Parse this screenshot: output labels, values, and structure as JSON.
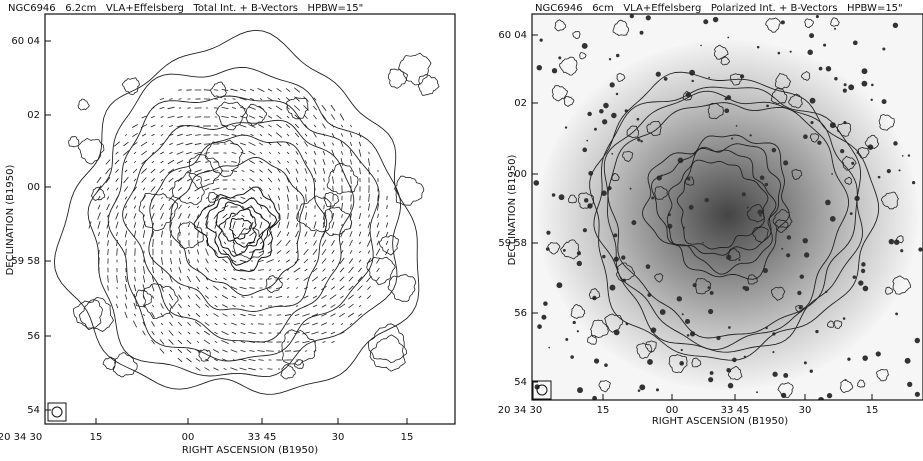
{
  "panels": [
    {
      "title": "NGC6946   6.2cm   VLA+Effelsberg   Total Int. + B-Vectors   HPBW=15\"",
      "x_label": "RIGHT ASCENSION (B1950)",
      "y_label": "DECLINATION (B1950)",
      "x_ticks": [
        "20 34 30",
        "15",
        "00",
        "33 45",
        "30",
        "15"
      ],
      "y_ticks": [
        "60 04",
        "02",
        "00",
        "59 58",
        "56",
        "54"
      ]
    },
    {
      "title": "NGC6946   6cm   VLA+Effelsberg   Polarized Int. + B-Vectors   HPBW=15\"",
      "x_label": "RIGHT ASCENSION (B1950)",
      "y_label": "DECLINATION (B1950)",
      "x_ticks": [
        "20 34 30",
        "15",
        "00",
        "33 45",
        "30",
        "15"
      ],
      "y_ticks": [
        "60 04",
        "02",
        "00",
        "59 58",
        "56",
        "54"
      ]
    }
  ]
}
